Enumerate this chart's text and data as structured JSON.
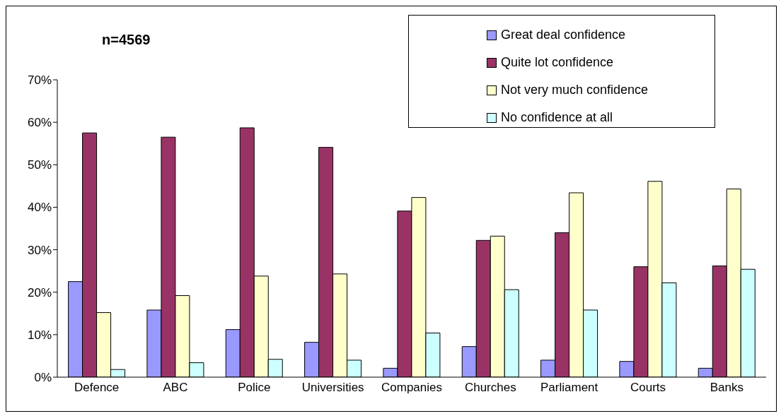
{
  "chart_data": {
    "type": "bar",
    "categories": [
      "Defence",
      "ABC",
      "Police",
      "Universities",
      "Companies",
      "Churches",
      "Parliament",
      "Courts",
      "Banks"
    ],
    "series": [
      {
        "name": "Great deal confidence",
        "color": "#9999ff",
        "values": [
          22.5,
          15.8,
          11.2,
          8.2,
          2.1,
          7.2,
          4.0,
          3.7,
          2.1
        ]
      },
      {
        "name": "Quite lot confidence",
        "color": "#993366",
        "values": [
          57.5,
          56.5,
          58.7,
          54.1,
          39.1,
          32.2,
          34.0,
          26.0,
          26.2
        ]
      },
      {
        "name": "Not very much confidence",
        "color": "#ffffcc",
        "values": [
          15.2,
          19.2,
          23.8,
          24.3,
          42.3,
          33.2,
          43.4,
          46.1,
          44.3
        ]
      },
      {
        "name": "No confidence at all",
        "color": "#ccffff",
        "values": [
          1.8,
          3.4,
          4.2,
          4.0,
          10.4,
          20.6,
          15.8,
          22.2,
          25.4
        ]
      }
    ],
    "ylim": [
      0,
      70
    ],
    "yticks": [
      {
        "value": 0,
        "label": "0%"
      },
      {
        "value": 10,
        "label": "10%"
      },
      {
        "value": 20,
        "label": "20%"
      },
      {
        "value": 30,
        "label": "30%"
      },
      {
        "value": 40,
        "label": "40%"
      },
      {
        "value": 50,
        "label": "50%"
      },
      {
        "value": 60,
        "label": "60%"
      },
      {
        "value": 70,
        "label": "70%"
      }
    ],
    "annotations": [
      "n=4569"
    ],
    "legend": "top right",
    "grid": false
  }
}
